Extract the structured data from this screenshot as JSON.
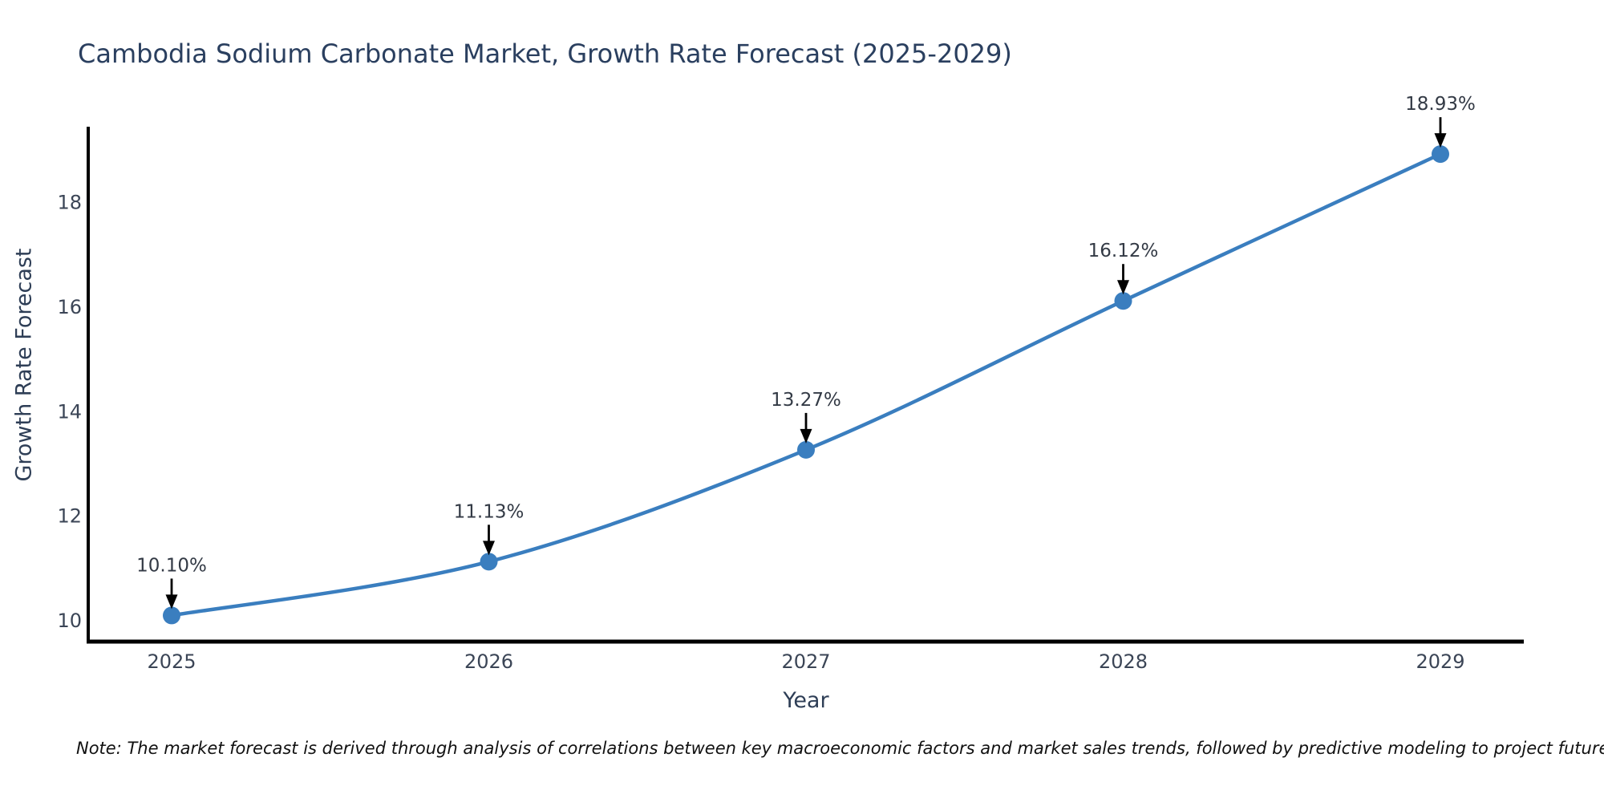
{
  "chart": {
    "title": "Cambodia Sodium Carbonate Market, Growth Rate Forecast (2025-2029)",
    "xlabel": "Year",
    "ylabel": "Growth Rate Forecast",
    "note": "Note: The market forecast is derived through analysis of correlations between key macroeconomic factors and market sales trends, followed by predictive modeling to project future sales"
  },
  "chart_data": {
    "type": "line",
    "title": "Cambodia Sodium Carbonate Market, Growth Rate Forecast (2025-2029)",
    "xlabel": "Year",
    "ylabel": "Growth Rate Forecast",
    "x": [
      2025,
      2026,
      2027,
      2028,
      2029
    ],
    "y": [
      10.1,
      11.13,
      13.27,
      16.12,
      18.93
    ],
    "point_labels": [
      "10.10%",
      "11.13%",
      "13.27%",
      "16.12%",
      "18.93%"
    ],
    "x_ticks": [
      "2025",
      "2026",
      "2027",
      "2028",
      "2029"
    ],
    "y_ticks": [
      10,
      12,
      14,
      16,
      18
    ],
    "ylim": [
      9.6,
      19.5
    ],
    "grid": false,
    "legend": "none",
    "line_color": "#3a7ebf",
    "marker_color": "#3a7ebf",
    "axis_color": "#000000",
    "arrow_color": "#000000"
  }
}
